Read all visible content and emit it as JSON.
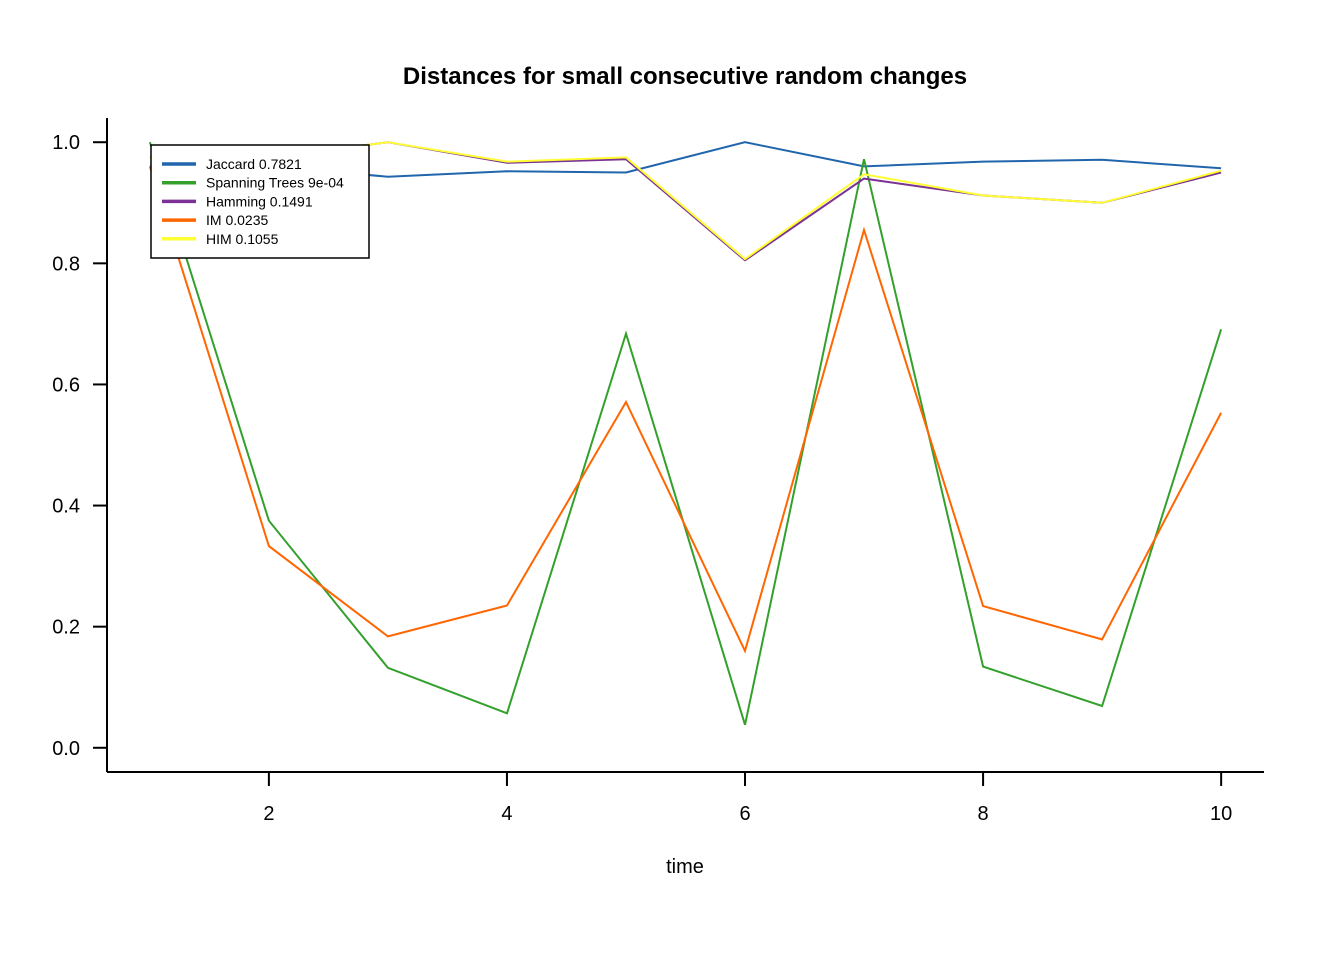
{
  "chart_data": {
    "type": "line",
    "title": "Distances for  small consecutive random changes",
    "xlabel": "time",
    "ylabel": "",
    "xlim": [
      0.64,
      10.36
    ],
    "ylim": [
      -0.04,
      1.04
    ],
    "xticks": [
      2,
      4,
      6,
      8,
      10
    ],
    "yticks": [
      0.0,
      0.2,
      0.4,
      0.6,
      0.8,
      1.0
    ],
    "xtick_labels": [
      "2",
      "4",
      "6",
      "8",
      "10"
    ],
    "ytick_labels": [
      "0.0",
      "0.2",
      "0.4",
      "0.6",
      "0.8",
      "1.0"
    ],
    "grid": false,
    "legend_position": "top-left",
    "x": [
      1,
      2,
      3,
      4,
      5,
      6,
      7,
      8,
      9,
      10
    ],
    "series": [
      {
        "name": "Jaccard  0.7821",
        "color": "#2166ac",
        "values": [
          0.96,
          0.96,
          0.943,
          0.952,
          0.95,
          1.0,
          0.96,
          0.968,
          0.971,
          0.957
        ]
      },
      {
        "name": "Spanning Trees 9e-04",
        "color": "#33a02c",
        "values": [
          1.0,
          0.375,
          0.132,
          0.057,
          0.684,
          0.038,
          0.972,
          0.134,
          0.069,
          0.691
        ]
      },
      {
        "name": "Hamming 0.1491",
        "color": "#7b3294",
        "values": [
          0.975,
          0.975,
          1.0,
          0.966,
          0.972,
          0.805,
          0.94,
          0.912,
          0.9,
          0.95
        ]
      },
      {
        "name": "IM 0.0235",
        "color": "#ff6600",
        "values": [
          0.96,
          0.333,
          0.184,
          0.235,
          0.571,
          0.16,
          0.855,
          0.234,
          0.179,
          0.553
        ]
      },
      {
        "name": "HIM 0.1055",
        "color": "#ffff33",
        "values": [
          0.975,
          0.975,
          1.0,
          0.968,
          0.975,
          0.807,
          0.947,
          0.912,
          0.9,
          0.953
        ]
      }
    ]
  }
}
